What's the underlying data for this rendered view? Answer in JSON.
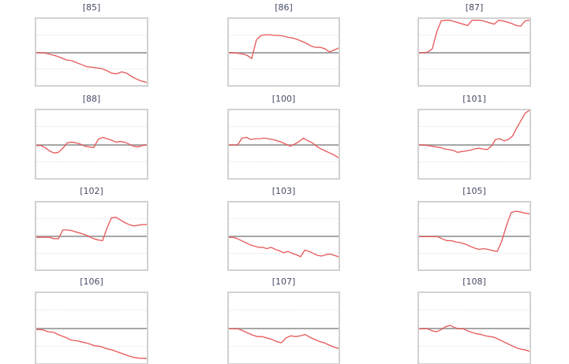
{
  "figure": {
    "background": "#ffffff",
    "description": "Grid of 12 small unlabeled line charts (sparklines) with a gray zero baseline"
  },
  "style": {
    "line_color": "#e65b5b",
    "zero_line_color": "#a6a6a6",
    "border_color": "#d2d2d2",
    "grid_color": "#e4e4e4",
    "title_color": "#464b64"
  },
  "chart_meta": {
    "x_axis": "unlabeled index, no ticks",
    "y_axis": "unlabeled, no ticks",
    "grid": "two horizontal dotted gridlines per panel",
    "legend": "none",
    "value_scale": "normalized: 0 = gray baseline, +0.51 = panel top edge, -0.49 = panel bottom edge",
    "ylim": [
      -0.49,
      0.51
    ]
  },
  "chart_data": [
    {
      "type": "line",
      "title": "[85]",
      "values": [
        0.0,
        0.0,
        -0.01,
        -0.03,
        -0.05,
        -0.08,
        -0.11,
        -0.12,
        -0.15,
        -0.18,
        -0.21,
        -0.22,
        -0.23,
        -0.24,
        -0.27,
        -0.31,
        -0.32,
        -0.29,
        -0.31,
        -0.36,
        -0.4,
        -0.43,
        -0.45
      ]
    },
    {
      "type": "line",
      "title": "[86]",
      "values": [
        0.0,
        0.0,
        -0.01,
        -0.02,
        -0.04,
        -0.09,
        0.19,
        0.26,
        0.27,
        0.27,
        0.26,
        0.26,
        0.25,
        0.23,
        0.22,
        0.2,
        0.17,
        0.14,
        0.1,
        0.08,
        0.08,
        0.06,
        0.01,
        0.04,
        0.07
      ]
    },
    {
      "type": "line",
      "title": "[87]",
      "values": [
        0.0,
        0.0,
        0.01,
        0.06,
        0.31,
        0.48,
        0.49,
        0.49,
        0.47,
        0.45,
        0.43,
        0.41,
        0.49,
        0.49,
        0.49,
        0.47,
        0.45,
        0.43,
        0.49,
        0.48,
        0.46,
        0.44,
        0.41,
        0.4,
        0.48,
        0.49
      ]
    },
    {
      "type": "line",
      "title": "[88]",
      "values": [
        -0.01,
        -0.01,
        -0.04,
        -0.09,
        -0.12,
        -0.11,
        -0.05,
        0.03,
        0.04,
        0.03,
        0.01,
        -0.02,
        -0.03,
        -0.04,
        0.08,
        0.11,
        0.09,
        0.07,
        0.04,
        0.05,
        0.04,
        0.01,
        -0.02,
        -0.03,
        -0.01,
        0.0
      ]
    },
    {
      "type": "line",
      "title": "[100]",
      "values": [
        0.0,
        0.0,
        0.0,
        0.1,
        0.11,
        0.08,
        0.09,
        0.09,
        0.1,
        0.09,
        0.08,
        0.06,
        0.04,
        0.01,
        -0.02,
        0.01,
        0.05,
        0.1,
        0.06,
        0.03,
        -0.02,
        -0.06,
        -0.09,
        -0.12,
        -0.15,
        -0.19
      ]
    },
    {
      "type": "line",
      "title": "[101]",
      "values": [
        0.0,
        0.0,
        -0.01,
        -0.02,
        -0.03,
        -0.04,
        -0.06,
        -0.07,
        -0.08,
        -0.11,
        -0.1,
        -0.09,
        -0.08,
        -0.06,
        -0.05,
        -0.06,
        -0.07,
        -0.02,
        0.08,
        0.09,
        0.06,
        0.08,
        0.13,
        0.25,
        0.36,
        0.47,
        0.51
      ]
    },
    {
      "type": "line",
      "title": "[102]",
      "values": [
        -0.01,
        -0.01,
        -0.01,
        -0.01,
        -0.03,
        -0.03,
        0.1,
        0.1,
        0.09,
        0.07,
        0.05,
        0.03,
        0.0,
        -0.03,
        -0.05,
        -0.06,
        0.13,
        0.28,
        0.29,
        0.25,
        0.21,
        0.18,
        0.16,
        0.17,
        0.18,
        0.18
      ]
    },
    {
      "type": "line",
      "title": "[103]",
      "values": [
        -0.01,
        -0.01,
        -0.03,
        -0.06,
        -0.09,
        -0.12,
        -0.14,
        -0.16,
        -0.16,
        -0.18,
        -0.16,
        -0.19,
        -0.21,
        -0.24,
        -0.22,
        -0.25,
        -0.27,
        -0.3,
        -0.2,
        -0.22,
        -0.25,
        -0.28,
        -0.29,
        -0.27,
        -0.26,
        -0.28,
        -0.3
      ]
    },
    {
      "type": "line",
      "title": "[105]",
      "values": [
        0.0,
        0.0,
        0.0,
        0.0,
        0.0,
        -0.03,
        -0.06,
        -0.06,
        -0.08,
        -0.09,
        -0.11,
        -0.14,
        -0.17,
        -0.19,
        -0.18,
        -0.19,
        -0.21,
        -0.22,
        -0.06,
        0.17,
        0.36,
        0.38,
        0.37,
        0.35,
        0.34
      ]
    },
    {
      "type": "line",
      "title": "[106]",
      "values": [
        -0.01,
        -0.01,
        -0.04,
        -0.05,
        -0.09,
        -0.12,
        -0.16,
        -0.17,
        -0.19,
        -0.21,
        -0.24,
        -0.25,
        -0.28,
        -0.3,
        -0.33,
        -0.36,
        -0.39,
        -0.41,
        -0.42,
        -0.42
      ]
    },
    {
      "type": "line",
      "title": "[107]",
      "values": [
        0.0,
        0.0,
        0.0,
        -0.03,
        -0.06,
        -0.09,
        -0.11,
        -0.11,
        -0.13,
        -0.15,
        -0.18,
        -0.2,
        -0.13,
        -0.1,
        -0.11,
        -0.1,
        -0.08,
        -0.12,
        -0.15,
        -0.18,
        -0.2,
        -0.23,
        -0.26,
        -0.28
      ]
    },
    {
      "type": "line",
      "title": "[108]",
      "values": [
        0.0,
        0.0,
        0.0,
        -0.03,
        -0.04,
        -0.01,
        0.03,
        0.05,
        0.02,
        0.0,
        0.0,
        -0.03,
        -0.05,
        -0.07,
        -0.08,
        -0.1,
        -0.11,
        -0.12,
        -0.15,
        -0.18,
        -0.21,
        -0.24,
        -0.27,
        -0.29,
        -0.3,
        -0.32
      ]
    }
  ]
}
